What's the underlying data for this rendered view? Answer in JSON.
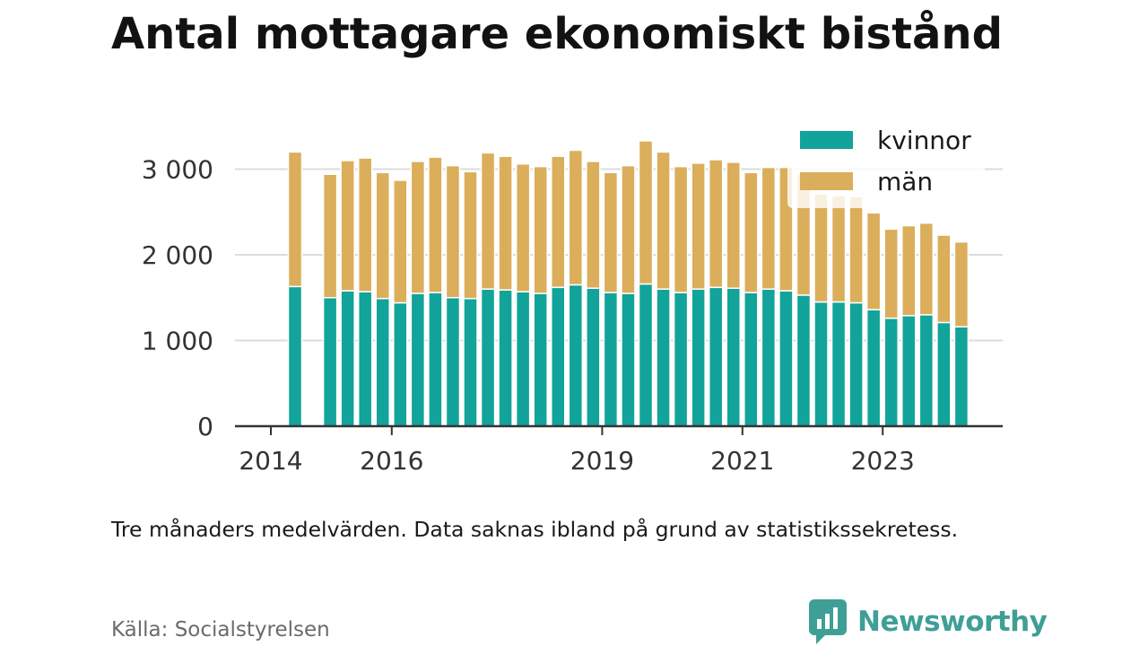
{
  "header": {
    "title": "Antal mottagare ekonomiskt bistånd"
  },
  "footer": {
    "note": "Tre månaders medelvärden. Data saknas ibland på grund av statistikssekretess.",
    "source": "Källa: Socialstyrelsen",
    "brand": "Newsworthy",
    "brand_icon": "bar-chart-speech-bubble-icon",
    "brand_color": "#3f9f96"
  },
  "chart_data": {
    "type": "bar",
    "stacked": true,
    "title": "Antal mottagare ekonomiskt bistånd",
    "xlabel": "",
    "ylabel": "",
    "ylim": [
      0,
      3300
    ],
    "y_ticks": [
      0,
      1000,
      2000,
      3000
    ],
    "y_tick_labels": [
      "0",
      "1 000",
      "2 000",
      "3 000"
    ],
    "x_tick_labels": [
      "2014",
      "2016",
      "2019",
      "2021",
      "2023"
    ],
    "grid": true,
    "legend_position": "top-right",
    "periods": [
      "2014 Q3",
      "2014 Q4",
      "2015 Q1",
      "2015 Q2",
      "2015 Q3",
      "2015 Q4",
      "2016 Q1",
      "2016 Q2",
      "2016 Q3",
      "2016 Q4",
      "2017 Q1",
      "2017 Q2",
      "2017 Q3",
      "2017 Q4",
      "2018 Q1",
      "2018 Q2",
      "2018 Q3",
      "2018 Q4",
      "2019 Q1",
      "2019 Q2",
      "2019 Q3",
      "2019 Q4",
      "2020 Q1",
      "2020 Q2",
      "2020 Q3",
      "2020 Q4",
      "2021 Q1",
      "2021 Q2",
      "2021 Q3",
      "2021 Q4",
      "2022 Q1",
      "2022 Q2",
      "2022 Q3",
      "2022 Q4",
      "2023 Q1",
      "2023 Q2",
      "2023 Q3",
      "2023 Q4",
      "2024 Q1",
      "2024 Q2"
    ],
    "series": [
      {
        "name": "kvinnor",
        "color": "#12a39a",
        "values": [
          1630,
          null,
          1500,
          1580,
          1570,
          1490,
          1440,
          1550,
          1560,
          1500,
          1490,
          1600,
          1590,
          1570,
          1550,
          1620,
          1650,
          1610,
          1560,
          1550,
          1660,
          1600,
          1560,
          1600,
          1620,
          1610,
          1560,
          1600,
          1580,
          1530,
          1450,
          1450,
          1440,
          1360,
          1260,
          1290,
          1300,
          1210,
          1160,
          null
        ]
      },
      {
        "name": "män",
        "color": "#dbae5b",
        "values": [
          1570,
          null,
          1440,
          1520,
          1560,
          1470,
          1430,
          1540,
          1580,
          1540,
          1480,
          1590,
          1560,
          1490,
          1480,
          1530,
          1570,
          1480,
          1400,
          1490,
          1670,
          1600,
          1470,
          1470,
          1490,
          1470,
          1400,
          1420,
          1440,
          1420,
          1260,
          1240,
          1240,
          1130,
          1040,
          1050,
          1070,
          1020,
          990,
          null
        ]
      }
    ]
  }
}
